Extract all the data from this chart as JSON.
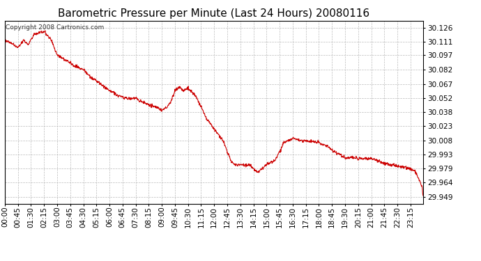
{
  "title": "Barometric Pressure per Minute (Last 24 Hours) 20080116",
  "copyright": "Copyright 2008 Cartronics.com",
  "line_color": "#cc0000",
  "background_color": "#ffffff",
  "grid_color": "#bbbbbb",
  "yticks": [
    29.949,
    29.964,
    29.979,
    29.993,
    30.008,
    30.023,
    30.038,
    30.052,
    30.067,
    30.082,
    30.097,
    30.111,
    30.126
  ],
  "ylim": [
    29.942,
    30.133
  ],
  "xtick_labels": [
    "00:00",
    "00:45",
    "01:30",
    "02:15",
    "03:00",
    "03:45",
    "04:30",
    "05:15",
    "06:00",
    "06:45",
    "07:30",
    "08:15",
    "09:00",
    "09:45",
    "10:30",
    "11:15",
    "12:00",
    "12:45",
    "13:30",
    "14:15",
    "15:00",
    "15:45",
    "16:30",
    "17:15",
    "18:00",
    "18:45",
    "19:30",
    "20:15",
    "21:00",
    "21:45",
    "22:30",
    "23:15"
  ],
  "key_times": [
    0,
    20,
    45,
    65,
    80,
    100,
    135,
    160,
    180,
    210,
    240,
    270,
    300,
    330,
    360,
    390,
    420,
    450,
    480,
    510,
    540,
    555,
    570,
    585,
    600,
    615,
    630,
    645,
    660,
    675,
    690,
    720,
    750,
    765,
    780,
    800,
    810,
    840,
    870,
    900,
    930,
    960,
    990,
    1020,
    1050,
    1080,
    1095,
    1110,
    1125,
    1140,
    1155,
    1170,
    1200,
    1230,
    1260,
    1290,
    1320,
    1350,
    1380,
    1410,
    1435,
    1439
  ],
  "key_vals": [
    30.113,
    30.11,
    30.105,
    30.113,
    30.108,
    30.119,
    30.122,
    30.113,
    30.097,
    30.092,
    30.086,
    30.082,
    30.073,
    30.067,
    30.06,
    30.055,
    30.052,
    30.052,
    30.047,
    30.044,
    30.04,
    30.042,
    30.048,
    30.06,
    30.064,
    30.06,
    30.063,
    30.058,
    30.053,
    30.043,
    30.033,
    30.02,
    30.008,
    29.996,
    29.985,
    29.982,
    29.983,
    29.982,
    29.975,
    29.983,
    29.987,
    30.006,
    30.01,
    30.008,
    30.007,
    30.006,
    30.003,
    30.002,
    29.998,
    29.995,
    29.993,
    29.99,
    29.99,
    29.989,
    29.989,
    29.986,
    29.983,
    29.981,
    29.98,
    29.976,
    29.96,
    29.949
  ],
  "title_fontsize": 11,
  "tick_fontsize": 7.5,
  "copyright_fontsize": 6.5
}
